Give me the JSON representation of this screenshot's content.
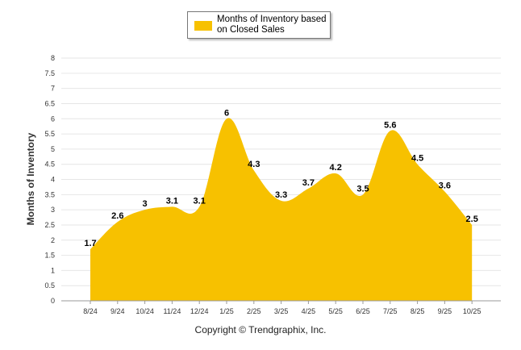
{
  "chart_data": {
    "type": "area",
    "categories": [
      "8/24",
      "9/24",
      "10/24",
      "11/24",
      "12/24",
      "1/25",
      "2/25",
      "3/25",
      "4/25",
      "5/25",
      "6/25",
      "7/25",
      "8/25",
      "9/25",
      "10/25"
    ],
    "series": [
      {
        "name": "Months of Inventory based on Closed Sales",
        "values": [
          1.7,
          2.6,
          3,
          3.1,
          3.1,
          6,
          4.3,
          3.3,
          3.7,
          4.2,
          3.5,
          5.6,
          4.5,
          3.6,
          2.5
        ],
        "color": "#f7c100"
      }
    ],
    "ylabel": "Months of Inventory",
    "ylim": [
      0,
      8
    ],
    "yticks": [
      "0",
      "0.5",
      "1",
      "1.5",
      "2",
      "2.5",
      "3",
      "3.5",
      "4",
      "4.5",
      "5",
      "5.5",
      "6",
      "6.5",
      "7",
      "7.5",
      "8"
    ],
    "grid": true,
    "legend": "top-center"
  },
  "legend": {
    "label": "Months of Inventory based on Closed Sales"
  },
  "footer": {
    "copyright": "Copyright © Trendgraphix, Inc."
  }
}
